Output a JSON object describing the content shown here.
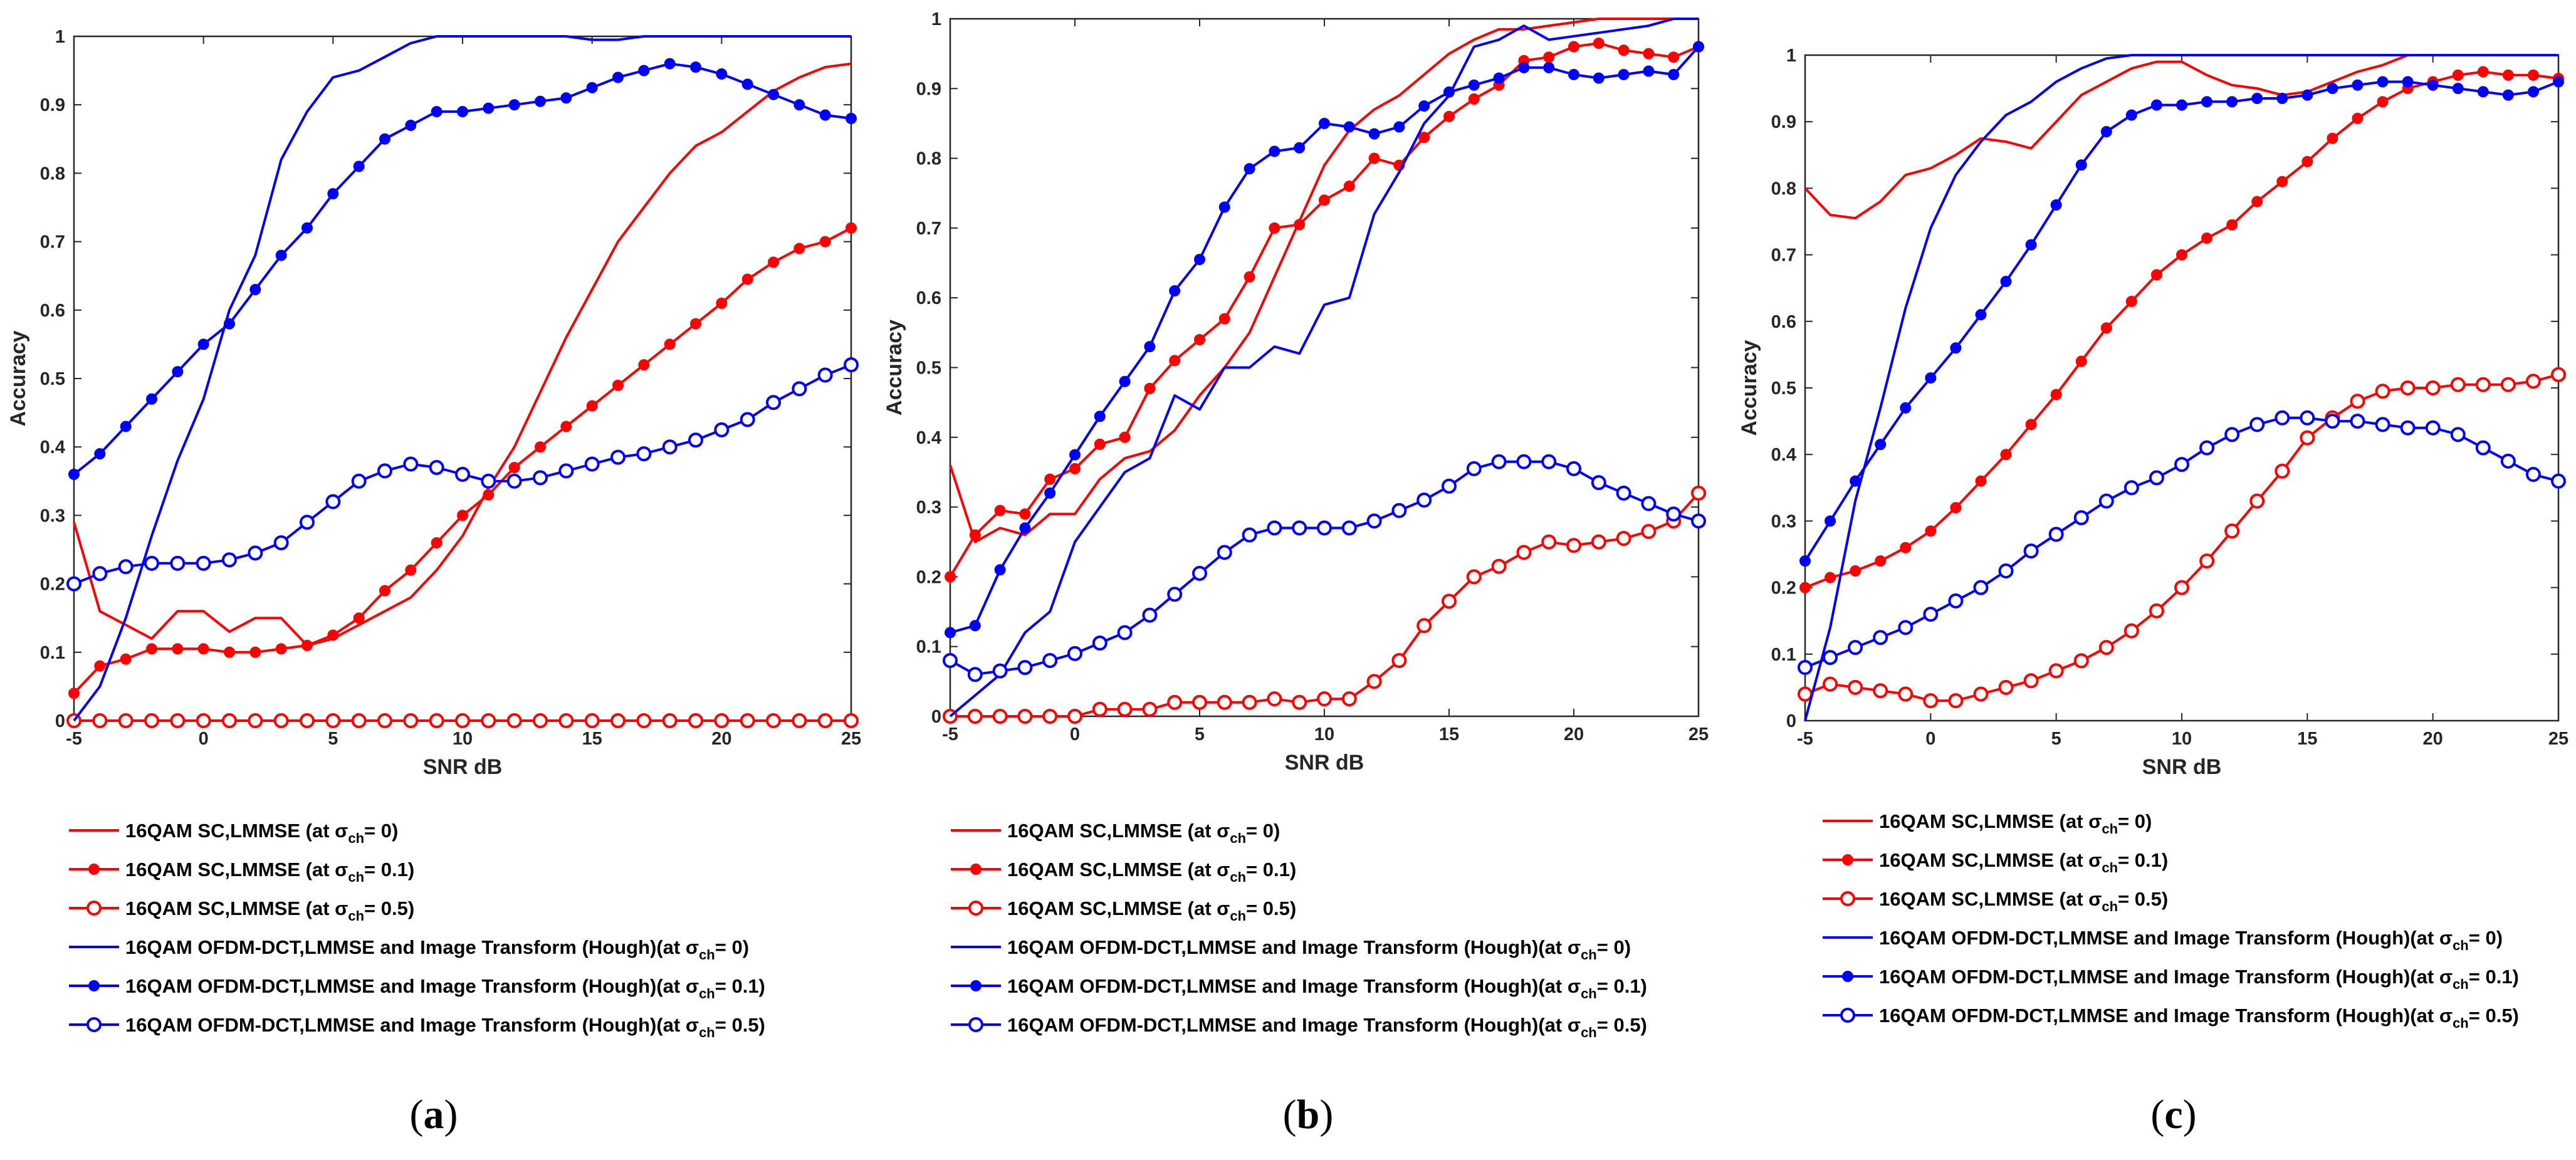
{
  "colors": {
    "red": "#ff0000",
    "blue": "#0000ff"
  },
  "chart_data": [
    {
      "type": "line",
      "panel": "a",
      "caption": "(a)",
      "title": "",
      "xlabel": "SNR dB",
      "ylabel": "Accuracy",
      "xlim": [
        -5,
        25
      ],
      "ylim": [
        0,
        1
      ],
      "xticks": [
        -5,
        0,
        5,
        10,
        15,
        20,
        25
      ],
      "yticks": [
        0,
        0.1,
        0.2,
        0.3,
        0.4,
        0.5,
        0.6,
        0.7,
        0.8,
        0.9,
        1
      ],
      "x": [
        -5,
        -4,
        -3,
        -2,
        -1,
        0,
        1,
        2,
        3,
        4,
        5,
        6,
        7,
        8,
        9,
        10,
        11,
        12,
        13,
        14,
        15,
        16,
        17,
        18,
        19,
        20,
        21,
        22,
        23,
        24,
        25
      ],
      "series": [
        {
          "name": "16QAM SC,LMMSE (at σch= 0)",
          "color": "red",
          "marker": "none",
          "values": [
            0.29,
            0.16,
            0.14,
            0.12,
            0.16,
            0.16,
            0.13,
            0.15,
            0.15,
            0.11,
            0.12,
            0.14,
            0.16,
            0.18,
            0.22,
            0.27,
            0.34,
            0.4,
            0.48,
            0.56,
            0.63,
            0.7,
            0.75,
            0.8,
            0.84,
            0.86,
            0.89,
            0.92,
            0.94,
            0.955,
            0.96
          ]
        },
        {
          "name": "16QAM SC,LMMSE (at σch= 0.1)",
          "color": "red",
          "marker": "dot",
          "values": [
            0.04,
            0.08,
            0.09,
            0.105,
            0.105,
            0.105,
            0.1,
            0.1,
            0.105,
            0.11,
            0.125,
            0.15,
            0.19,
            0.22,
            0.26,
            0.3,
            0.33,
            0.37,
            0.4,
            0.43,
            0.46,
            0.49,
            0.52,
            0.55,
            0.58,
            0.61,
            0.645,
            0.67,
            0.69,
            0.7,
            0.72
          ]
        },
        {
          "name": "16QAM SC,LMMSE (at σch= 0.5)",
          "color": "red",
          "marker": "circle",
          "values": [
            0,
            0,
            0,
            0,
            0,
            0,
            0,
            0,
            0,
            0,
            0,
            0,
            0,
            0,
            0,
            0,
            0,
            0,
            0,
            0,
            0,
            0,
            0,
            0,
            0,
            0,
            0,
            0,
            0,
            0,
            0
          ]
        },
        {
          "name": "16QAM OFDM-DCT,LMMSE and Image Transform (Hough)(at σch= 0)",
          "color": "blue",
          "marker": "none",
          "values": [
            0,
            0.05,
            0.15,
            0.27,
            0.38,
            0.47,
            0.6,
            0.68,
            0.82,
            0.89,
            0.94,
            0.95,
            0.97,
            0.99,
            1,
            1,
            1,
            1,
            1,
            1,
            0.995,
            0.995,
            1,
            1,
            1,
            1,
            1,
            1,
            1,
            1,
            1
          ]
        },
        {
          "name": "16QAM OFDM-DCT,LMMSE and Image Transform (Hough)(at σch= 0.1)",
          "color": "blue",
          "marker": "dot",
          "values": [
            0.36,
            0.39,
            0.43,
            0.47,
            0.51,
            0.55,
            0.58,
            0.63,
            0.68,
            0.72,
            0.77,
            0.81,
            0.85,
            0.87,
            0.89,
            0.89,
            0.895,
            0.9,
            0.905,
            0.91,
            0.925,
            0.94,
            0.95,
            0.96,
            0.955,
            0.945,
            0.93,
            0.915,
            0.9,
            0.885,
            0.88
          ]
        },
        {
          "name": "16QAM OFDM-DCT,LMMSE and Image Transform (Hough)(at σch= 0.5)",
          "color": "blue",
          "marker": "circle",
          "values": [
            0.2,
            0.215,
            0.225,
            0.23,
            0.23,
            0.23,
            0.235,
            0.245,
            0.26,
            0.29,
            0.32,
            0.35,
            0.365,
            0.375,
            0.37,
            0.36,
            0.35,
            0.35,
            0.355,
            0.365,
            0.375,
            0.385,
            0.39,
            0.4,
            0.41,
            0.425,
            0.44,
            0.465,
            0.485,
            0.505,
            0.52
          ]
        }
      ]
    },
    {
      "type": "line",
      "panel": "b",
      "caption": "(b)",
      "title": "",
      "xlabel": "SNR dB",
      "ylabel": "Accuracy",
      "xlim": [
        -5,
        25
      ],
      "ylim": [
        0,
        1
      ],
      "xticks": [
        -5,
        0,
        5,
        10,
        15,
        20,
        25
      ],
      "yticks": [
        0,
        0.1,
        0.2,
        0.3,
        0.4,
        0.5,
        0.6,
        0.7,
        0.8,
        0.9,
        1
      ],
      "x": [
        -5,
        -4,
        -3,
        -2,
        -1,
        0,
        1,
        2,
        3,
        4,
        5,
        6,
        7,
        8,
        9,
        10,
        11,
        12,
        13,
        14,
        15,
        16,
        17,
        18,
        19,
        20,
        21,
        22,
        23,
        24,
        25
      ],
      "series": [
        {
          "name": "16QAM SC,LMMSE (at σch= 0)",
          "color": "red",
          "marker": "none",
          "values": [
            0.36,
            0.25,
            0.27,
            0.26,
            0.29,
            0.29,
            0.34,
            0.37,
            0.38,
            0.41,
            0.46,
            0.5,
            0.55,
            0.63,
            0.71,
            0.79,
            0.84,
            0.87,
            0.89,
            0.92,
            0.95,
            0.97,
            0.985,
            0.985,
            0.99,
            0.995,
            1,
            1,
            1,
            1,
            1
          ]
        },
        {
          "name": "16QAM SC,LMMSE (at σch= 0.1)",
          "color": "red",
          "marker": "dot",
          "values": [
            0.2,
            0.26,
            0.295,
            0.29,
            0.34,
            0.355,
            0.39,
            0.4,
            0.47,
            0.51,
            0.54,
            0.57,
            0.63,
            0.7,
            0.705,
            0.74,
            0.76,
            0.8,
            0.79,
            0.83,
            0.86,
            0.885,
            0.905,
            0.94,
            0.945,
            0.96,
            0.965,
            0.955,
            0.95,
            0.945,
            0.96
          ]
        },
        {
          "name": "16QAM SC,LMMSE (at σch= 0.5)",
          "color": "red",
          "marker": "circle",
          "values": [
            0,
            0,
            0,
            0,
            0,
            0,
            0.01,
            0.01,
            0.01,
            0.02,
            0.02,
            0.02,
            0.02,
            0.025,
            0.02,
            0.025,
            0.025,
            0.05,
            0.08,
            0.13,
            0.165,
            0.2,
            0.215,
            0.235,
            0.25,
            0.245,
            0.25,
            0.255,
            0.265,
            0.28,
            0.32
          ]
        },
        {
          "name": "16QAM OFDM-DCT,LMMSE and Image Transform (Hough)(at σch= 0)",
          "color": "blue",
          "marker": "none",
          "values": [
            0,
            0.03,
            0.06,
            0.12,
            0.15,
            0.25,
            0.3,
            0.35,
            0.37,
            0.46,
            0.44,
            0.5,
            0.5,
            0.53,
            0.52,
            0.59,
            0.6,
            0.72,
            0.78,
            0.85,
            0.89,
            0.96,
            0.97,
            0.99,
            0.97,
            0.975,
            0.98,
            0.985,
            0.99,
            1,
            1
          ]
        },
        {
          "name": "16QAM OFDM-DCT,LMMSE and Image Transform (Hough)(at σch= 0.1)",
          "color": "blue",
          "marker": "dot",
          "values": [
            0.12,
            0.13,
            0.21,
            0.27,
            0.32,
            0.375,
            0.43,
            0.48,
            0.53,
            0.61,
            0.655,
            0.73,
            0.785,
            0.81,
            0.815,
            0.85,
            0.845,
            0.835,
            0.845,
            0.875,
            0.895,
            0.905,
            0.915,
            0.93,
            0.93,
            0.92,
            0.915,
            0.92,
            0.925,
            0.92,
            0.96
          ]
        },
        {
          "name": "16QAM OFDM-DCT,LMMSE and Image Transform (Hough)(at σch= 0.5)",
          "color": "blue",
          "marker": "circle",
          "values": [
            0.08,
            0.06,
            0.065,
            0.07,
            0.08,
            0.09,
            0.105,
            0.12,
            0.145,
            0.175,
            0.205,
            0.235,
            0.26,
            0.27,
            0.27,
            0.27,
            0.27,
            0.28,
            0.295,
            0.31,
            0.33,
            0.355,
            0.365,
            0.365,
            0.365,
            0.355,
            0.335,
            0.32,
            0.305,
            0.29,
            0.28
          ]
        }
      ]
    },
    {
      "type": "line",
      "panel": "c",
      "caption": "(c)",
      "title": "",
      "xlabel": "SNR dB",
      "ylabel": "Accuracy",
      "xlim": [
        -5,
        25
      ],
      "ylim": [
        0,
        1
      ],
      "xticks": [
        -5,
        0,
        5,
        10,
        15,
        20,
        25
      ],
      "yticks": [
        0,
        0.1,
        0.2,
        0.3,
        0.4,
        0.5,
        0.6,
        0.7,
        0.8,
        0.9,
        1
      ],
      "x": [
        -5,
        -4,
        -3,
        -2,
        -1,
        0,
        1,
        2,
        3,
        4,
        5,
        6,
        7,
        8,
        9,
        10,
        11,
        12,
        13,
        14,
        15,
        16,
        17,
        18,
        19,
        20,
        21,
        22,
        23,
        24,
        25
      ],
      "series": [
        {
          "name": "16QAM SC,LMMSE (at σch= 0)",
          "color": "red",
          "marker": "none",
          "values": [
            0.8,
            0.76,
            0.755,
            0.78,
            0.82,
            0.83,
            0.85,
            0.875,
            0.87,
            0.86,
            0.9,
            0.94,
            0.96,
            0.98,
            0.99,
            0.99,
            0.97,
            0.955,
            0.95,
            0.94,
            0.945,
            0.96,
            0.975,
            0.985,
            1,
            1,
            1,
            1,
            1,
            1,
            1
          ]
        },
        {
          "name": "16QAM SC,LMMSE (at σch= 0.1)",
          "color": "red",
          "marker": "dot",
          "values": [
            0.2,
            0.215,
            0.225,
            0.24,
            0.26,
            0.285,
            0.32,
            0.36,
            0.4,
            0.445,
            0.49,
            0.54,
            0.59,
            0.63,
            0.67,
            0.7,
            0.725,
            0.745,
            0.78,
            0.81,
            0.84,
            0.875,
            0.905,
            0.93,
            0.95,
            0.96,
            0.97,
            0.975,
            0.97,
            0.97,
            0.965
          ]
        },
        {
          "name": "16QAM SC,LMMSE (at σch= 0.5)",
          "color": "red",
          "marker": "circle",
          "values": [
            0.04,
            0.055,
            0.05,
            0.045,
            0.04,
            0.03,
            0.03,
            0.04,
            0.05,
            0.06,
            0.075,
            0.09,
            0.11,
            0.135,
            0.165,
            0.2,
            0.24,
            0.285,
            0.33,
            0.375,
            0.425,
            0.455,
            0.48,
            0.495,
            0.5,
            0.5,
            0.505,
            0.505,
            0.505,
            0.51,
            0.52
          ]
        },
        {
          "name": "16QAM OFDM-DCT,LMMSE and Image Transform (Hough)(at σch= 0)",
          "color": "blue",
          "marker": "none",
          "values": [
            0,
            0.14,
            0.33,
            0.47,
            0.62,
            0.74,
            0.82,
            0.87,
            0.91,
            0.93,
            0.96,
            0.98,
            0.995,
            1,
            1,
            1,
            1,
            1,
            1,
            1,
            1,
            1,
            1,
            1,
            1,
            1,
            1,
            1,
            1,
            1,
            1
          ]
        },
        {
          "name": "16QAM OFDM-DCT,LMMSE and Image Transform (Hough)(at σch= 0.1)",
          "color": "blue",
          "marker": "dot",
          "values": [
            0.24,
            0.3,
            0.36,
            0.415,
            0.47,
            0.515,
            0.56,
            0.61,
            0.66,
            0.715,
            0.775,
            0.835,
            0.885,
            0.91,
            0.925,
            0.925,
            0.93,
            0.93,
            0.935,
            0.935,
            0.94,
            0.95,
            0.955,
            0.96,
            0.96,
            0.955,
            0.95,
            0.945,
            0.94,
            0.945,
            0.96
          ]
        },
        {
          "name": "16QAM OFDM-DCT,LMMSE and Image Transform (Hough)(at σch= 0.5)",
          "color": "blue",
          "marker": "circle",
          "values": [
            0.08,
            0.095,
            0.11,
            0.125,
            0.14,
            0.16,
            0.18,
            0.2,
            0.225,
            0.255,
            0.28,
            0.305,
            0.33,
            0.35,
            0.365,
            0.385,
            0.41,
            0.43,
            0.445,
            0.455,
            0.455,
            0.45,
            0.45,
            0.445,
            0.44,
            0.44,
            0.43,
            0.41,
            0.39,
            0.37,
            0.36
          ]
        }
      ]
    }
  ],
  "legend": [
    {
      "prefix": "16QAM SC,LMMSE (at ",
      "sub": "ch",
      "suffix": "= 0)",
      "color": "red",
      "marker": "none"
    },
    {
      "prefix": "16QAM SC,LMMSE (at ",
      "sub": "ch",
      "suffix": "= 0.1)",
      "color": "red",
      "marker": "dot"
    },
    {
      "prefix": "16QAM SC,LMMSE (at ",
      "sub": "ch",
      "suffix": "= 0.5)",
      "color": "red",
      "marker": "circle"
    },
    {
      "prefix": "16QAM OFDM-DCT,LMMSE and Image Transform (Hough)(at ",
      "sub": "ch",
      "suffix": "= 0)",
      "color": "blue",
      "marker": "none"
    },
    {
      "prefix": "16QAM OFDM-DCT,LMMSE and Image Transform (Hough)(at ",
      "sub": "ch",
      "suffix": "= 0.1)",
      "color": "blue",
      "marker": "dot"
    },
    {
      "prefix": "16QAM OFDM-DCT,LMMSE and Image Transform (Hough)(at ",
      "sub": "ch",
      "suffix": "= 0.5)",
      "color": "blue",
      "marker": "circle"
    }
  ],
  "sigma_symbol": "σ"
}
